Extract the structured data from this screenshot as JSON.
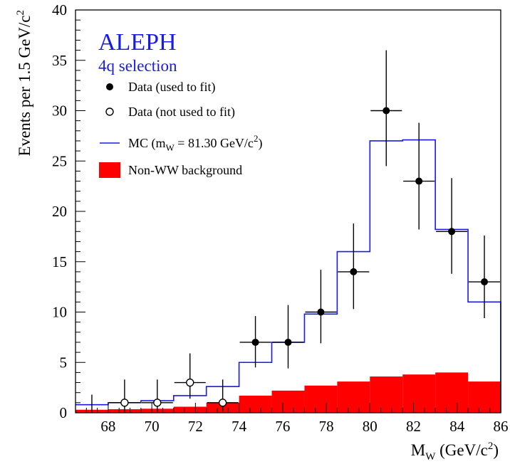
{
  "chart_data": {
    "type": "histogram",
    "experiment": "ALEPH",
    "selection": "4q selection",
    "xlabel": {
      "main": "M",
      "sub": "W",
      "unit": " (GeV/c",
      "sup": "2",
      "close": ")"
    },
    "ylabel": {
      "main": "Events per 1.5 GeV/c",
      "sup": "2"
    },
    "xlim": [
      66.5,
      86
    ],
    "ylim": [
      0,
      40
    ],
    "xticks": [
      68,
      70,
      72,
      74,
      76,
      78,
      80,
      82,
      84,
      86
    ],
    "yticks": [
      0,
      5,
      10,
      15,
      20,
      25,
      30,
      35,
      40
    ],
    "bin_edges": [
      66.5,
      68.0,
      69.5,
      71.0,
      72.5,
      74.0,
      75.5,
      77.0,
      78.5,
      80.0,
      81.5,
      83.0,
      84.5,
      86.0
    ],
    "mc_values": [
      0.8,
      1.0,
      1.2,
      1.7,
      2.6,
      5.0,
      7.0,
      9.8,
      16.0,
      27.0,
      27.1,
      18.2,
      11.0
    ],
    "background_values": [
      0.3,
      0.35,
      0.4,
      0.6,
      1.0,
      1.7,
      2.2,
      2.7,
      3.1,
      3.6,
      3.8,
      4.0,
      3.1
    ],
    "data_fit": [
      {
        "x": 74.75,
        "y": 7,
        "err_low": 4.5,
        "err_high": 9.6
      },
      {
        "x": 76.25,
        "y": 7,
        "err_low": 4.4,
        "err_high": 10.7
      },
      {
        "x": 77.75,
        "y": 10,
        "err_low": 6.9,
        "err_high": 14.2
      },
      {
        "x": 79.25,
        "y": 14,
        "err_low": 10.3,
        "err_high": 18.8
      },
      {
        "x": 80.75,
        "y": 30,
        "err_low": 24.5,
        "err_high": 36.0
      },
      {
        "x": 82.25,
        "y": 23,
        "err_low": 18.2,
        "err_high": 28.8
      },
      {
        "x": 83.75,
        "y": 18,
        "err_low": 13.8,
        "err_high": 23.3
      },
      {
        "x": 85.25,
        "y": 13,
        "err_low": 9.4,
        "err_high": 17.6
      }
    ],
    "data_nofit": [
      {
        "x": 67.25,
        "y": 0,
        "err_low": 0,
        "err_high": 1.8
      },
      {
        "x": 68.75,
        "y": 1,
        "err_low": 0.1,
        "err_high": 3.3
      },
      {
        "x": 70.25,
        "y": 1,
        "err_low": 0.1,
        "err_high": 3.3
      },
      {
        "x": 71.75,
        "y": 3,
        "err_low": 1.4,
        "err_high": 5.9
      },
      {
        "x": 73.25,
        "y": 1,
        "err_low": 0.1,
        "err_high": 3.3
      }
    ],
    "legend": [
      {
        "marker": "filled-circle",
        "label": "Data (used to fit)"
      },
      {
        "marker": "open-circle",
        "label": "Data (not used to fit)"
      },
      {
        "marker": "line",
        "label": {
          "main": "MC (m",
          "sub": "W",
          "rest": " = 81.30 GeV/c",
          "sup": "2",
          "close": ")"
        }
      },
      {
        "marker": "filled-box",
        "label": "Non-WW background"
      }
    ],
    "colors": {
      "mc": "#1a1ae6",
      "background": "#ff0000",
      "data": "#000000",
      "title": "#1a1ae6"
    }
  }
}
